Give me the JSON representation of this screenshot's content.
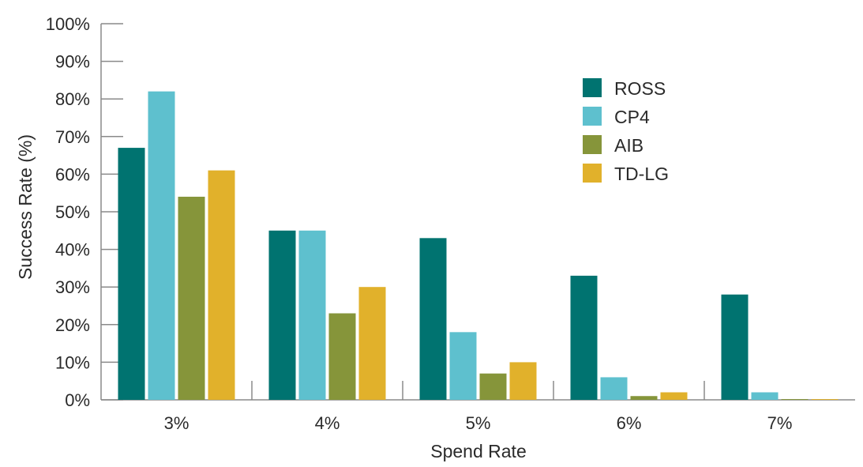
{
  "chart_data": {
    "type": "bar",
    "categories": [
      "3%",
      "4%",
      "5%",
      "6%",
      "7%"
    ],
    "series": [
      {
        "name": "ROSS",
        "color": "#007370",
        "values": [
          67,
          45,
          43,
          33,
          28
        ]
      },
      {
        "name": "CP4",
        "color": "#5ec0ce",
        "values": [
          82,
          45,
          18,
          6,
          2
        ]
      },
      {
        "name": "AIB",
        "color": "#86953a",
        "values": [
          54,
          23,
          7,
          1,
          0.2
        ]
      },
      {
        "name": "TD-LG",
        "color": "#e1b12b",
        "values": [
          61,
          30,
          10,
          2,
          0.2
        ]
      }
    ],
    "yticks": [
      "0%",
      "10%",
      "20%",
      "30%",
      "40%",
      "50%",
      "60%",
      "70%",
      "80%",
      "90%",
      "100%"
    ],
    "ylim": [
      0,
      100
    ],
    "xlabel": "Spend Rate",
    "ylabel": "Success Rate (%)",
    "legend_position": "top-right",
    "grid": false
  }
}
